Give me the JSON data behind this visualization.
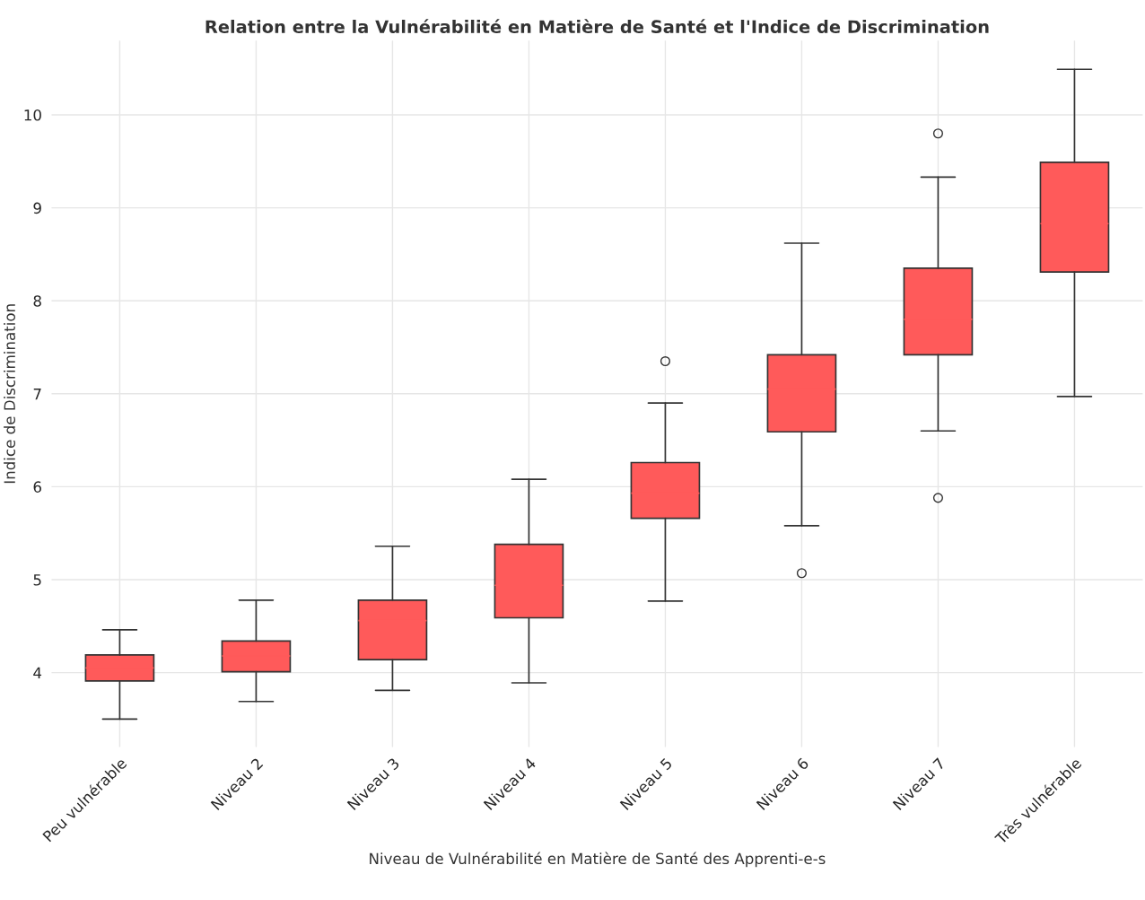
{
  "chart_data": {
    "type": "box",
    "title": "Relation entre la Vulnérabilité en Matière de Santé et l'Indice de Discrimination",
    "xlabel": "Niveau de Vulnérabilité en Matière de Santé des Apprenti-e-s",
    "ylabel": "Indice de Discrimination",
    "categories": [
      "Peu vulnérable",
      "Niveau 2",
      "Niveau 3",
      "Niveau 4",
      "Niveau 5",
      "Niveau 6",
      "Niveau 7",
      "Très vulnérable"
    ],
    "color": "#ff5a5a",
    "ylim": [
      3.2,
      10.8
    ],
    "yticks": [
      4,
      5,
      6,
      7,
      8,
      9,
      10
    ],
    "grid": true,
    "boxes": [
      {
        "low": 3.5,
        "q1": 3.91,
        "median": 4.05,
        "q3": 4.19,
        "high": 4.46
      },
      {
        "low": 3.69,
        "q1": 4.01,
        "median": 4.18,
        "q3": 4.34,
        "high": 4.78
      },
      {
        "low": 3.81,
        "q1": 4.14,
        "median": 4.56,
        "q3": 4.78,
        "high": 5.36
      },
      {
        "low": 3.89,
        "q1": 4.59,
        "median": 4.94,
        "q3": 5.38,
        "high": 6.08
      },
      {
        "low": 4.77,
        "q1": 5.66,
        "median": 5.93,
        "q3": 6.26,
        "high": 6.9,
        "outliers": [
          7.35
        ]
      },
      {
        "low": 5.58,
        "q1": 6.59,
        "median": 7.05,
        "q3": 7.42,
        "high": 8.62,
        "outliers": [
          5.07
        ]
      },
      {
        "low": 6.6,
        "q1": 7.42,
        "median": 7.8,
        "q3": 8.35,
        "high": 9.33,
        "outliers": [
          9.8,
          5.88
        ]
      },
      {
        "low": 6.97,
        "q1": 8.31,
        "median": 8.83,
        "q3": 9.49,
        "high": 10.49
      }
    ]
  }
}
